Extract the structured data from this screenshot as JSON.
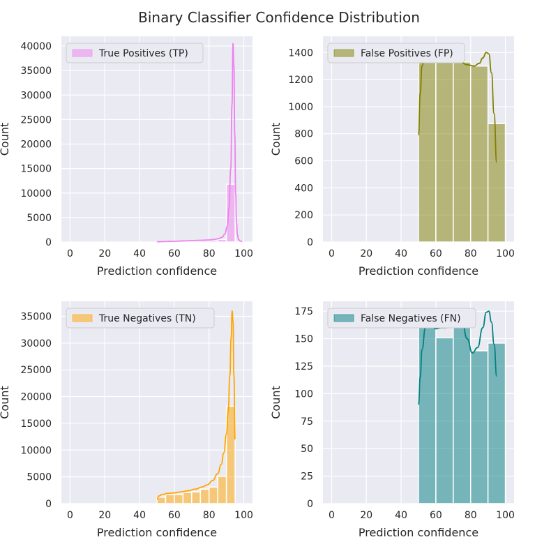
{
  "figure": {
    "title": "Binary Classifier Confidence Distribution",
    "background": "#ffffff",
    "axes_background": "#eaeaf2",
    "grid_color": "#ffffff"
  },
  "chart_data": [
    {
      "type": "bar",
      "legend": "True Positives (TP)",
      "legend_position": "top-left",
      "color": "#ee82ee",
      "xlabel": "Prediction confidence",
      "ylabel": "Count",
      "xlim": [
        -5,
        105
      ],
      "ylim": [
        0,
        42000
      ],
      "xticks": [
        0,
        20,
        40,
        60,
        80,
        100
      ],
      "yticks": [
        0,
        5000,
        10000,
        15000,
        20000,
        25000,
        30000,
        35000,
        40000
      ],
      "bins": [
        [
          50,
          55
        ],
        [
          55,
          60
        ],
        [
          60,
          65
        ],
        [
          65,
          70
        ],
        [
          70,
          75
        ],
        [
          75,
          80
        ],
        [
          80,
          85
        ],
        [
          85,
          90
        ],
        [
          90,
          95
        ],
        [
          95,
          100
        ]
      ],
      "values": [
        60,
        90,
        120,
        160,
        210,
        280,
        380,
        520,
        11800,
        0
      ],
      "kde_x": [
        50,
        55,
        60,
        65,
        70,
        75,
        80,
        82.5,
        85,
        87.5,
        89,
        90.5,
        91.5,
        92.5,
        93.2,
        93.8,
        94.3,
        94.8,
        95.3,
        95.8,
        96.3,
        97,
        98,
        99
      ],
      "kde_y": [
        50,
        110,
        160,
        220,
        280,
        350,
        430,
        520,
        650,
        950,
        1600,
        3200,
        7000,
        15000,
        28000,
        40500,
        36000,
        22000,
        10000,
        4000,
        1500,
        500,
        200,
        100
      ]
    },
    {
      "type": "bar",
      "legend": "False Positives (FP)",
      "legend_position": "top-left",
      "color": "#808000",
      "xlabel": "Prediction confidence",
      "ylabel": "Count",
      "xlim": [
        -5,
        105
      ],
      "ylim": [
        0,
        1520
      ],
      "xticks": [
        0,
        20,
        40,
        60,
        80,
        100
      ],
      "yticks": [
        0,
        200,
        400,
        600,
        800,
        1000,
        1200,
        1400
      ],
      "bins": [
        [
          50,
          60
        ],
        [
          60,
          70
        ],
        [
          70,
          80
        ],
        [
          80,
          90
        ],
        [
          90,
          100
        ]
      ],
      "values": [
        1420,
        1330,
        1330,
        1300,
        875
      ],
      "kde_x": [
        50,
        51,
        52,
        54,
        57,
        60,
        63,
        66,
        70,
        74,
        78,
        82,
        85,
        87,
        89,
        90.5,
        92,
        93.5,
        95
      ],
      "kde_y": [
        790,
        1100,
        1300,
        1420,
        1430,
        1390,
        1350,
        1340,
        1340,
        1330,
        1310,
        1300,
        1320,
        1360,
        1400,
        1390,
        1250,
        950,
        590
      ]
    },
    {
      "type": "bar",
      "legend": "True Negatives (TN)",
      "legend_position": "top-left",
      "color": "#ffa500",
      "xlabel": "Prediction confidence",
      "ylabel": "Count",
      "xlim": [
        -5,
        105
      ],
      "ylim": [
        0,
        37800
      ],
      "xticks": [
        0,
        20,
        40,
        60,
        80,
        100
      ],
      "yticks": [
        0,
        5000,
        10000,
        15000,
        20000,
        25000,
        30000,
        35000
      ],
      "bins": [
        [
          50,
          55
        ],
        [
          55,
          60
        ],
        [
          60,
          65
        ],
        [
          65,
          70
        ],
        [
          70,
          75
        ],
        [
          75,
          80
        ],
        [
          80,
          85
        ],
        [
          85,
          90
        ],
        [
          90,
          95
        ],
        [
          95,
          100
        ]
      ],
      "values": [
        1200,
        1700,
        1700,
        2100,
        2200,
        2700,
        3100,
        5100,
        18200,
        0
      ],
      "kde_x": [
        50,
        51,
        53,
        56,
        60,
        64,
        68,
        72,
        76,
        79,
        82,
        85,
        87,
        88.5,
        90,
        91,
        92,
        92.7,
        93.3,
        93.8,
        94.3,
        95
      ],
      "kde_y": [
        800,
        1400,
        1700,
        1900,
        2000,
        2200,
        2400,
        2700,
        3100,
        3500,
        4300,
        5600,
        7300,
        9500,
        13000,
        17000,
        24000,
        31000,
        36000,
        34000,
        24000,
        12000
      ]
    },
    {
      "type": "bar",
      "legend": "False Negatives (FN)",
      "legend_position": "top-left",
      "color": "#008080",
      "xlabel": "Prediction confidence",
      "ylabel": "Count",
      "xlim": [
        -5,
        105
      ],
      "ylim": [
        0,
        184
      ],
      "xticks": [
        0,
        20,
        40,
        60,
        80,
        100
      ],
      "yticks": [
        0,
        25,
        50,
        75,
        100,
        125,
        150,
        175
      ],
      "bins": [
        [
          50,
          60
        ],
        [
          60,
          70
        ],
        [
          70,
          80
        ],
        [
          80,
          90
        ],
        [
          90,
          100
        ]
      ],
      "values": [
        161,
        151,
        170,
        139,
        146
      ],
      "kde_x": [
        50,
        51,
        52,
        54,
        57,
        60,
        63,
        66,
        69,
        72,
        75,
        78,
        81,
        84,
        87,
        89,
        90.5,
        92,
        93.5,
        95
      ],
      "kde_y": [
        90,
        115,
        140,
        160,
        162,
        159,
        160,
        160,
        161,
        165,
        166,
        150,
        137,
        142,
        160,
        174,
        175,
        165,
        145,
        116
      ]
    }
  ]
}
